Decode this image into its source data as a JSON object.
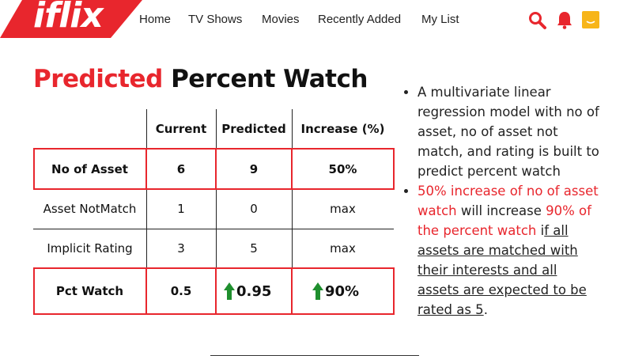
{
  "header": {
    "logo": "iflix",
    "nav": [
      "Home",
      "TV Shows",
      "Movies",
      "Recently Added",
      "My List"
    ],
    "icons": [
      "search-icon",
      "bell-icon",
      "avatar"
    ],
    "accent": "#e8262d",
    "avatar_color": "#f7b519"
  },
  "title": {
    "part1": "Predicted",
    "part2": "Percent Watch"
  },
  "table": {
    "headers": [
      "Current",
      "Predicted",
      "Increase (%)"
    ],
    "rows": [
      {
        "label": "No of Asset",
        "current": "6",
        "predicted": "9",
        "increase": "50%"
      },
      {
        "label": "Asset NotMatch",
        "current": "1",
        "predicted": "0",
        "increase": "max"
      },
      {
        "label": "Implicit Rating",
        "current": "3",
        "predicted": "5",
        "increase": "max"
      },
      {
        "label": "Pct Watch",
        "current": "0.5",
        "predicted": "0.95",
        "increase": "90%"
      }
    ],
    "arrow_color": "#1f8f2e"
  },
  "notes": {
    "b1": "A multivariate linear regression model with no of asset, no of asset not match, and rating is built to predict percent watch",
    "b2_red1": "50% increase of no of asset watch",
    "b2_mid": " will increase ",
    "b2_red2": "90% of the percent watch",
    "b2_pre": " i",
    "b2_ul": "f all assets are matched with their interests and all assets are expected to be rated as 5",
    "b2_end": "."
  }
}
